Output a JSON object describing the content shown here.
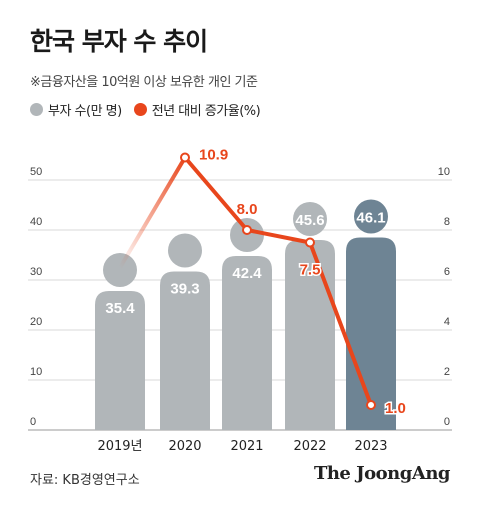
{
  "header": {
    "title": "한국 부자 수 추이",
    "subtitle": "※금융자산을 10억원 이상 보유한 개인 기준"
  },
  "legend": [
    {
      "label": "부자 수(만 명)",
      "color": "#b1b6b9"
    },
    {
      "label": "전년 대비 증가율(%)",
      "color": "#e8461c"
    }
  ],
  "footer": {
    "source": "자료: KB경영연구소",
    "brand": "The JoongAng"
  },
  "colors": {
    "bar": "#b1b6b9",
    "bar_highlight": "#6e8494",
    "line": "#e8461c",
    "grid": "#cccccc",
    "axis": "#888888"
  },
  "chart_data": {
    "type": "bar",
    "categories": [
      "2019년",
      "2020",
      "2021",
      "2022",
      "2023"
    ],
    "series": [
      {
        "name": "부자 수(만 명)",
        "type": "bar",
        "axis": "left",
        "values": [
          35.4,
          39.3,
          42.4,
          45.6,
          46.1
        ]
      },
      {
        "name": "전년 대비 증가율(%)",
        "type": "line",
        "axis": "right",
        "values": [
          null,
          10.9,
          8.0,
          7.5,
          1.0
        ]
      }
    ],
    "value_labels": {
      "bars": [
        "35.4",
        "39.3",
        "42.4",
        "45.6",
        "46.1"
      ],
      "line": [
        "",
        "10.9",
        "8.0",
        "7.5",
        "1.0"
      ]
    },
    "y_left": {
      "ticks": [
        "0",
        "10",
        "20",
        "30",
        "40",
        "50"
      ],
      "range": [
        0,
        56
      ]
    },
    "y_right": {
      "ticks": [
        "0",
        "2",
        "4",
        "6",
        "8",
        "10"
      ],
      "range": [
        0,
        11.2
      ]
    },
    "grid": true,
    "legend_position": "top-left",
    "line_start_trend": 6.5
  }
}
